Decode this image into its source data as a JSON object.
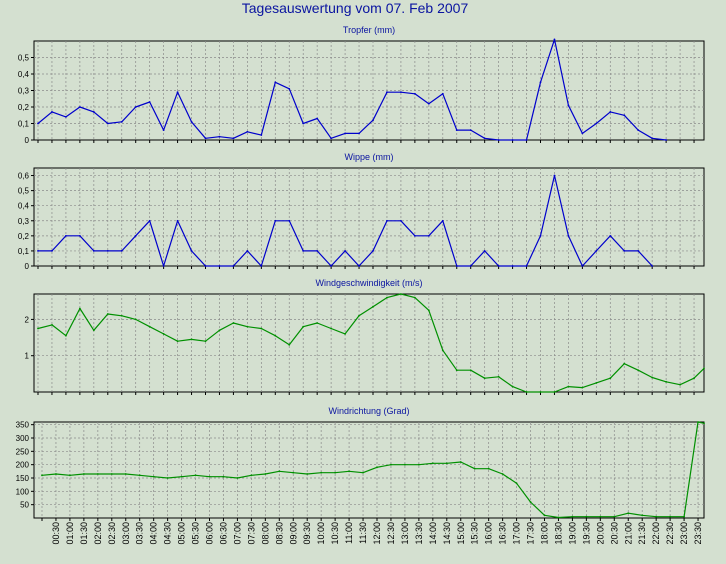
{
  "title": "Tagesauswertung vom 07. Feb 2007",
  "colors": {
    "background": "#d4e0d0",
    "title": "#0a14a0",
    "blue_series": "#0000cc",
    "green_series": "#009000",
    "grid": "#8a8a8a"
  },
  "chart_data": [
    {
      "type": "line",
      "title": "Tropfer (mm)",
      "grid": true,
      "ylim": [
        0,
        0.6
      ],
      "yticks": [
        0,
        0.1,
        0.2,
        0.3,
        0.4,
        0.5
      ],
      "ytick_labels": [
        "0",
        "0,1",
        "0,2",
        "0,3",
        "0,4",
        "0,5"
      ],
      "series": [
        {
          "color": "#0000cc",
          "values": [
            0.1,
            0.17,
            0.14,
            0.2,
            0.17,
            0.1,
            0.11,
            0.2,
            0.23,
            0.06,
            0.29,
            0.11,
            0.01,
            0.02,
            0.01,
            0.05,
            0.03,
            0.35,
            0.31,
            0.1,
            0.13,
            0.01,
            0.04,
            0.04,
            0.12,
            0.29,
            0.29,
            0.28,
            0.22,
            0.28,
            0.06,
            0.06,
            0.01,
            0,
            0,
            0,
            0.35,
            0.61,
            0.21,
            0.04,
            0.1,
            0.17,
            0.15,
            0.06,
            0.01,
            0,
            null,
            null
          ]
        }
      ]
    },
    {
      "type": "line",
      "title": "Wippe (mm)",
      "grid": true,
      "ylim": [
        0,
        0.65
      ],
      "yticks": [
        0,
        0.1,
        0.2,
        0.3,
        0.4,
        0.5,
        0.6
      ],
      "ytick_labels": [
        "0",
        "0,1",
        "0,2",
        "0,3",
        "0,4",
        "0,5",
        "0,6"
      ],
      "series": [
        {
          "color": "#0000cc",
          "values": [
            0.1,
            0.1,
            0.2,
            0.2,
            0.1,
            0.1,
            0.1,
            0.2,
            0.3,
            0,
            0.3,
            0.1,
            0,
            0,
            0,
            0.1,
            0,
            0.3,
            0.3,
            0.1,
            0.1,
            0,
            0.1,
            0,
            0.1,
            0.3,
            0.3,
            0.2,
            0.2,
            0.3,
            0,
            0,
            0.1,
            0,
            0,
            0,
            0.2,
            0.6,
            0.2,
            0,
            0.1,
            0.2,
            0.1,
            0.1,
            0,
            null,
            null,
            null
          ]
        }
      ]
    },
    {
      "type": "line",
      "title": "Windgeschwindigkeit (m/s)",
      "grid": true,
      "ylim": [
        0,
        2.7
      ],
      "yticks": [
        1,
        2
      ],
      "ytick_labels": [
        "1",
        "2"
      ],
      "series": [
        {
          "color": "#009000",
          "values": [
            1.75,
            1.85,
            1.55,
            2.3,
            1.7,
            2.15,
            2.1,
            2.0,
            1.8,
            1.6,
            1.4,
            1.45,
            1.4,
            1.7,
            1.9,
            1.8,
            1.75,
            1.55,
            1.3,
            1.8,
            1.9,
            1.75,
            1.6,
            2.1,
            2.35,
            2.6,
            2.7,
            2.6,
            2.25,
            1.15,
            0.6,
            0.6,
            0.38,
            0.42,
            0.15,
            0.0,
            0.0,
            0.0,
            0.15,
            0.12,
            0.25,
            0.38,
            0.78,
            0.6,
            0.4,
            0.28,
            0.2,
            0.38,
            0.65
          ]
        }
      ]
    },
    {
      "type": "line",
      "title": "Windrichtung (Grad)",
      "grid": true,
      "ylim": [
        0,
        360
      ],
      "yticks": [
        50,
        100,
        150,
        200,
        250,
        300,
        350
      ],
      "ytick_labels": [
        "50",
        "100",
        "150",
        "200",
        "250",
        "300",
        "350"
      ],
      "x_tick_labels": [
        "00:30",
        "01:00",
        "01:30",
        "02:00",
        "02:30",
        "03:00",
        "03:30",
        "04:00",
        "04:30",
        "05:00",
        "05:30",
        "06:00",
        "06:30",
        "07:00",
        "07:30",
        "08:00",
        "08:30",
        "09:00",
        "09:30",
        "10:00",
        "10:30",
        "11:00",
        "11:30",
        "12:00",
        "12:30",
        "13:00",
        "13:30",
        "14:00",
        "14:30",
        "15:00",
        "15:30",
        "16:00",
        "16:30",
        "17:00",
        "17:30",
        "18:00",
        "18:30",
        "19:00",
        "19:30",
        "20:00",
        "20:30",
        "21:00",
        "21:30",
        "22:00",
        "22:30",
        "23:00",
        "23:30"
      ],
      "series": [
        {
          "color": "#009000",
          "values": [
            160,
            165,
            160,
            165,
            165,
            165,
            165,
            160,
            155,
            150,
            155,
            160,
            155,
            155,
            150,
            160,
            165,
            175,
            170,
            165,
            170,
            170,
            175,
            170,
            190,
            200,
            200,
            200,
            205,
            205,
            210,
            185,
            185,
            165,
            130,
            60,
            10,
            2,
            5,
            5,
            5,
            5,
            18,
            10,
            5,
            5,
            5,
            360,
            355
          ]
        }
      ]
    }
  ]
}
